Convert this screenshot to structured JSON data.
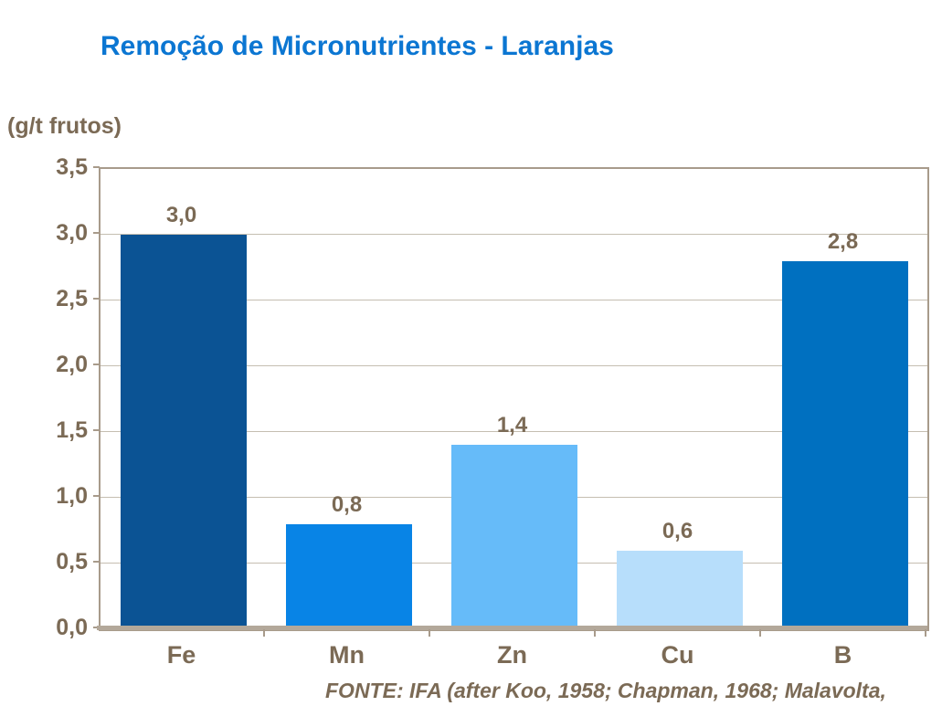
{
  "page": {
    "title": "Remoção de Micronutrientes - Laranjas",
    "title_color": "#0B76D2",
    "axis_caption": "(g/t frutos)",
    "source": "FONTE: IFA (after Koo, 1958; Chapman, 1968; Malavolta,",
    "text_color": "#7B6A55",
    "background_color": "#FFFFFF"
  },
  "chart_data": {
    "type": "bar",
    "title": "Remoção de Micronutrientes - Laranjas",
    "ylabel": "(g/t frutos)",
    "xlabel": "",
    "categories": [
      "Fe",
      "Mn",
      "Zn",
      "Cu",
      "B"
    ],
    "values": [
      3.0,
      0.8,
      1.4,
      0.6,
      2.8
    ],
    "value_labels": [
      "3,0",
      "0,8",
      "1,4",
      "0,6",
      "2,8"
    ],
    "bar_colors": [
      "#0B5394",
      "#0884E6",
      "#66BBF9",
      "#B7DEFB",
      "#0070C0"
    ],
    "ylim": [
      0,
      3.5
    ],
    "ytick_step": 0.5,
    "ytick_labels": [
      "0,0",
      "0,5",
      "1,0",
      "1,5",
      "2,0",
      "2,5",
      "3,0",
      "3,5"
    ],
    "grid": true,
    "gridline_color": "#C5BEB1",
    "border_color": "#A89B8B",
    "legend": "none",
    "annotation": "FONTE: IFA (after Koo, 1958; Chapman, 1968; Malavolta,"
  }
}
